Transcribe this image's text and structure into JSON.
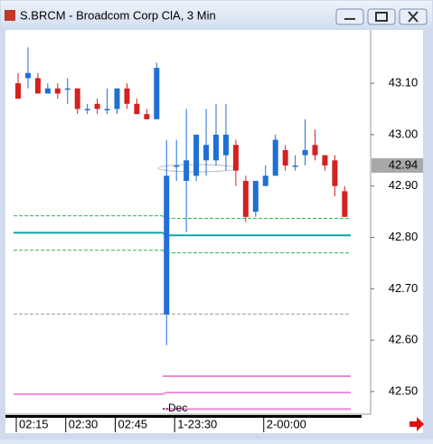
{
  "window_title": "S.BRCM - Broadcom Corp ClA, 3 Min",
  "chart_data": {
    "type": "candlestick",
    "categories": [
      "02:15",
      null,
      null,
      null,
      null,
      "02:30",
      null,
      null,
      null,
      null,
      "02:45",
      null,
      null,
      null,
      null,
      null,
      "1-23:30",
      null,
      null,
      null,
      null,
      null,
      null,
      null,
      null,
      "2-00:00",
      null,
      null,
      null,
      null,
      null,
      null,
      null,
      null
    ],
    "open": [
      43.1,
      43.11,
      43.11,
      43.08,
      43.09,
      43.09,
      43.09,
      43.05,
      43.06,
      43.05,
      43.05,
      43.09,
      43.06,
      43.04,
      43.03,
      42.65,
      42.94,
      42.91,
      42.92,
      42.95,
      42.95,
      42.96,
      42.98,
      42.91,
      42.85,
      42.9,
      42.92,
      42.97,
      42.94,
      42.96,
      42.98,
      42.96,
      42.95,
      42.89
    ],
    "high": [
      43.12,
      43.17,
      43.12,
      43.1,
      43.1,
      43.11,
      43.09,
      43.06,
      43.07,
      43.09,
      43.09,
      43.1,
      43.07,
      43.05,
      43.14,
      42.99,
      42.99,
      43.05,
      43.0,
      43.05,
      43.06,
      43.06,
      42.99,
      42.92,
      42.91,
      42.94,
      43.0,
      42.98,
      42.96,
      43.03,
      43.01,
      42.96,
      42.96,
      42.9
    ],
    "low": [
      43.07,
      43.09,
      43.08,
      43.08,
      43.07,
      43.06,
      43.04,
      43.04,
      43.04,
      43.04,
      43.04,
      43.05,
      43.04,
      43.03,
      43.03,
      42.59,
      42.91,
      42.81,
      42.91,
      42.92,
      42.94,
      42.93,
      42.9,
      42.83,
      42.84,
      42.9,
      42.92,
      42.93,
      42.93,
      42.94,
      42.95,
      42.93,
      42.88,
      42.84
    ],
    "close": [
      43.07,
      43.12,
      43.08,
      43.09,
      43.08,
      43.09,
      43.05,
      43.05,
      43.05,
      43.05,
      43.09,
      43.06,
      43.04,
      43.03,
      43.13,
      42.92,
      42.94,
      42.95,
      43.0,
      42.98,
      43.0,
      43.0,
      42.93,
      42.84,
      42.91,
      42.92,
      42.99,
      42.94,
      42.94,
      42.97,
      42.96,
      42.94,
      42.9,
      42.84
    ],
    "up_color": "#1f6fd6",
    "down_color": "#d42121",
    "ylim": [
      42.456,
      43.204
    ],
    "yticks": [
      {
        "value": 42.5,
        "label": "42.50"
      },
      {
        "value": 42.6,
        "label": "42.60"
      },
      {
        "value": 42.7,
        "label": "42.70"
      },
      {
        "value": 42.8,
        "label": "42.80"
      },
      {
        "value": 42.9,
        "label": "42.90"
      },
      {
        "value": 43.0,
        "label": "43.00"
      },
      {
        "value": 43.1,
        "label": "43.10"
      }
    ],
    "price_marker": {
      "value": 42.94,
      "label": "42.94"
    },
    "levels": [
      {
        "color": "#2fb84f",
        "dash": true,
        "values": [
          42.842,
          42.837
        ]
      },
      {
        "color": "#14a3a8",
        "dash": false,
        "values": [
          42.809,
          42.804
        ]
      },
      {
        "color": "#2fb84f",
        "dash": true,
        "values": [
          42.775,
          42.77
        ]
      },
      {
        "color": "#9a9a9a",
        "dash": true,
        "values": [
          42.651,
          42.651
        ]
      },
      {
        "color": "#e58ad6",
        "dash": false,
        "values": [
          null,
          42.53
        ]
      },
      {
        "color": "#f08ae0",
        "dash": false,
        "values": [
          42.495,
          42.498
        ]
      },
      {
        "color": "#e58ad6",
        "dash": false,
        "values": [
          null,
          42.466
        ]
      }
    ],
    "annotation": "Dec"
  }
}
